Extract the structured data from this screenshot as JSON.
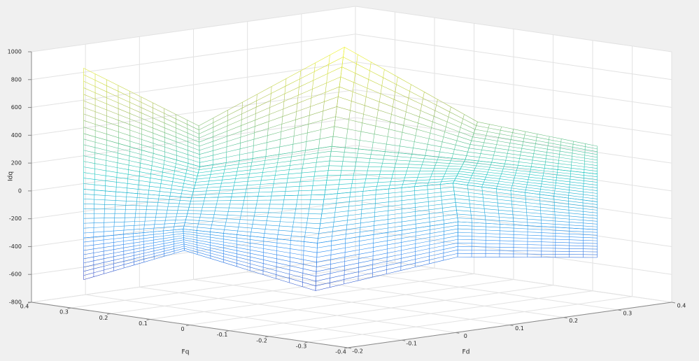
{
  "chart_data": {
    "type": "mesh",
    "xlabel": "Fd",
    "ylabel": "Fq",
    "zlabel": "Idq",
    "xlim": [
      -0.2,
      0.4
    ],
    "ylim": [
      -0.4,
      0.4
    ],
    "zlim": [
      -800,
      1000
    ],
    "xticks": [
      -0.2,
      -0.1,
      0,
      0.1,
      0.2,
      0.3,
      0.4
    ],
    "yticks": [
      -0.4,
      -0.3,
      -0.2,
      -0.1,
      0,
      0.1,
      0.2,
      0.3,
      0.4
    ],
    "zticks": [
      -800,
      -600,
      -400,
      -200,
      0,
      200,
      400,
      600,
      800,
      1000
    ],
    "grid": true,
    "colormap": [
      "#3e26a8",
      "#2d8ff3",
      "#1ac6c2",
      "#a5be5a",
      "#f9fb15"
    ],
    "x": [
      [
        -0.14,
        0.0,
        0.16,
        0.26,
        0.35
      ],
      [
        -0.14,
        -0.02,
        0.1,
        0.23,
        0.35
      ],
      [
        -0.14,
        -0.05,
        0.05,
        0.2,
        0.35
      ],
      [
        -0.14,
        -0.08,
        0.0,
        0.18,
        0.35
      ],
      [
        -0.14,
        -0.1,
        -0.04,
        0.15,
        0.35
      ]
    ],
    "y": [
      [
        0.35,
        0.25,
        0.1,
        -0.1,
        -0.28
      ],
      [
        0.35,
        0.22,
        0.05,
        -0.11,
        -0.28
      ],
      [
        0.35,
        0.2,
        0.0,
        -0.12,
        -0.28
      ],
      [
        0.35,
        0.18,
        -0.05,
        -0.16,
        -0.28
      ],
      [
        0.35,
        0.15,
        -0.1,
        -0.2,
        -0.28
      ]
    ],
    "z": [
      [
        870,
        420,
        960,
        450,
        300
      ],
      [
        400,
        150,
        300,
        200,
        100
      ],
      [
        0,
        -50,
        0,
        50,
        -100
      ],
      [
        -350,
        -250,
        -300,
        -200,
        -300
      ],
      [
        -650,
        -380,
        -600,
        -420,
        -500
      ]
    ]
  }
}
